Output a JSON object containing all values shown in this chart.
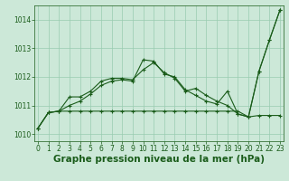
{
  "xlabel": "Graphe pression niveau de la mer (hPa)",
  "background_color": "#cce8d8",
  "grid_color": "#99ccb0",
  "line_color": "#1a5c1a",
  "x_ticks": [
    0,
    1,
    2,
    3,
    4,
    5,
    6,
    7,
    8,
    9,
    10,
    11,
    12,
    13,
    14,
    15,
    16,
    17,
    18,
    19,
    20,
    21,
    22,
    23
  ],
  "ylim": [
    1009.75,
    1014.5
  ],
  "xlim": [
    -0.3,
    23.3
  ],
  "yticks": [
    1010,
    1011,
    1012,
    1013,
    1014
  ],
  "series": [
    [
      1010.2,
      1010.75,
      1010.8,
      1010.8,
      1010.8,
      1010.8,
      1010.8,
      1010.8,
      1010.8,
      1010.8,
      1010.8,
      1010.8,
      1010.8,
      1010.8,
      1010.8,
      1010.8,
      1010.8,
      1010.8,
      1010.8,
      1010.8,
      1010.6,
      1010.65,
      1010.65,
      1010.65
    ],
    [
      1010.2,
      1010.75,
      1010.8,
      1011.0,
      1011.15,
      1011.4,
      1011.7,
      1011.85,
      1011.9,
      1011.85,
      1012.6,
      1012.55,
      1012.1,
      1012.0,
      1011.55,
      1011.35,
      1011.15,
      1011.05,
      1011.5,
      1010.7,
      1010.6,
      1012.2,
      1013.3,
      1014.35
    ],
    [
      1010.2,
      1010.75,
      1010.8,
      1011.3,
      1011.3,
      1011.5,
      1011.85,
      1011.95,
      1011.95,
      1011.9,
      1012.25,
      1012.5,
      1012.15,
      1011.95,
      1011.5,
      1011.6,
      1011.35,
      1011.15,
      1011.0,
      1010.7,
      1010.6,
      1012.2,
      1013.3,
      1014.35
    ]
  ],
  "tick_fontsize": 5.5,
  "xlabel_fontsize": 7.5
}
